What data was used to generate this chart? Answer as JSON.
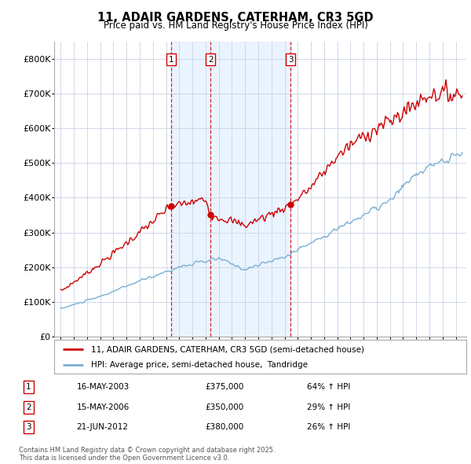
{
  "title": "11, ADAIR GARDENS, CATERHAM, CR3 5GD",
  "subtitle": "Price paid vs. HM Land Registry's House Price Index (HPI)",
  "background_color": "#ffffff",
  "plot_bg_color": "#ffffff",
  "grid_color": "#d0d8e8",
  "line1_color": "#cc0000",
  "line2_color": "#7bafd4",
  "shade_color": "#ddeeff",
  "sale_marker_color": "#cc0000",
  "vline_color": "#cc0000",
  "ylim": [
    0,
    850000
  ],
  "yticks": [
    0,
    100000,
    200000,
    300000,
    400000,
    500000,
    600000,
    700000,
    800000
  ],
  "ytick_labels": [
    "£0",
    "£100K",
    "£200K",
    "£300K",
    "£400K",
    "£500K",
    "£600K",
    "£700K",
    "£800K"
  ],
  "sale1_year": 2003.37,
  "sale1_price": 375000,
  "sale1_label": "1",
  "sale1_date": "16-MAY-2003",
  "sale1_hpi": "64% ↑ HPI",
  "sale2_year": 2006.37,
  "sale2_price": 350000,
  "sale2_label": "2",
  "sale2_date": "15-MAY-2006",
  "sale2_hpi": "29% ↑ HPI",
  "sale3_year": 2012.47,
  "sale3_price": 380000,
  "sale3_label": "3",
  "sale3_date": "21-JUN-2012",
  "sale3_hpi": "26% ↑ HPI",
  "legend1_label": "11, ADAIR GARDENS, CATERHAM, CR3 5GD (semi-detached house)",
  "legend2_label": "HPI: Average price, semi-detached house,  Tandridge",
  "footer": "Contains HM Land Registry data © Crown copyright and database right 2025.\nThis data is licensed under the Open Government Licence v3.0.",
  "xmin": 1994.5,
  "xmax": 2025.8
}
